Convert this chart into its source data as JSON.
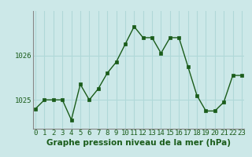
{
  "x": [
    0,
    1,
    2,
    3,
    4,
    5,
    6,
    7,
    8,
    9,
    10,
    11,
    12,
    13,
    14,
    15,
    16,
    17,
    18,
    19,
    20,
    21,
    22,
    23
  ],
  "y": [
    1024.8,
    1025.0,
    1025.0,
    1025.0,
    1024.55,
    1025.35,
    1025.0,
    1025.25,
    1025.6,
    1025.85,
    1026.25,
    1026.65,
    1026.4,
    1026.4,
    1026.05,
    1026.4,
    1026.4,
    1025.75,
    1025.1,
    1024.75,
    1024.75,
    1024.95,
    1025.55,
    1025.55
  ],
  "xlim": [
    -0.3,
    23.3
  ],
  "ylim": [
    1024.35,
    1027.0
  ],
  "yticks": [
    1025,
    1026
  ],
  "xticks": [
    0,
    1,
    2,
    3,
    4,
    5,
    6,
    7,
    8,
    9,
    10,
    11,
    12,
    13,
    14,
    15,
    16,
    17,
    18,
    19,
    20,
    21,
    22,
    23
  ],
  "line_color": "#1a5c1a",
  "marker_color": "#1a5c1a",
  "bg_color": "#cce8e8",
  "plot_bg_color": "#cce8e8",
  "grid_color": "#b0d8d8",
  "xlabel": "Graphe pression niveau de la mer (hPa)",
  "xlabel_fontsize": 7.5,
  "tick_fontsize": 6.5,
  "ytick_fontsize": 6.5
}
